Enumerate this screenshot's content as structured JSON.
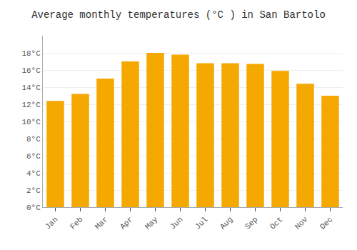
{
  "chart_data": {
    "type": "bar",
    "title": "Average monthly temperatures (°C ) in San Bartolo",
    "categories": [
      "Jan",
      "Feb",
      "Mar",
      "Apr",
      "May",
      "Jun",
      "Jul",
      "Aug",
      "Sep",
      "Oct",
      "Nov",
      "Dec"
    ],
    "values": [
      12.4,
      13.2,
      15.0,
      17.0,
      18.0,
      17.8,
      16.8,
      16.8,
      16.7,
      15.9,
      14.4,
      13.0
    ],
    "color": "#F5A800",
    "ylim": [
      0,
      20
    ],
    "yticks": [
      {
        "value": 0,
        "label": "0°C"
      },
      {
        "value": 2,
        "label": "2°C"
      },
      {
        "value": 4,
        "label": "4°C"
      },
      {
        "value": 6,
        "label": "6°C"
      },
      {
        "value": 8,
        "label": "8°C"
      },
      {
        "value": 10,
        "label": "10°C"
      },
      {
        "value": 12,
        "label": "12°C"
      },
      {
        "value": 14,
        "label": "14°C"
      },
      {
        "value": 16,
        "label": "16°C"
      },
      {
        "value": 18,
        "label": "18°C"
      }
    ],
    "grid": true
  }
}
